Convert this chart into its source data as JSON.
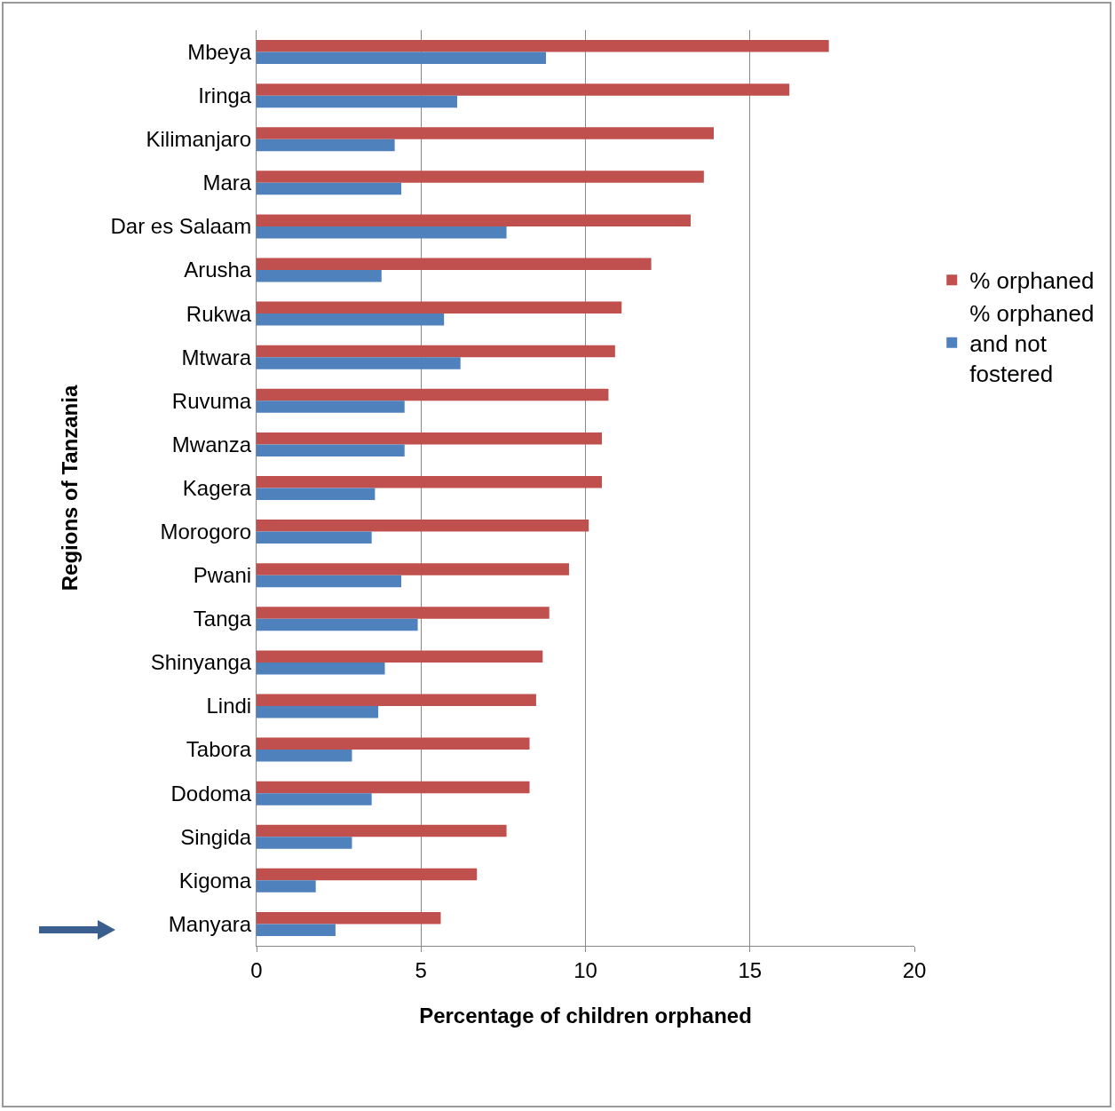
{
  "chart_data": {
    "type": "bar",
    "orientation": "horizontal",
    "xlabel": "Percentage of children orphaned",
    "ylabel": "Regions of Tanzania",
    "categories": [
      "Mbeya",
      "Iringa",
      "Kilimanjaro",
      "Mara",
      "Dar es Salaam",
      "Arusha",
      "Rukwa",
      "Mtwara",
      "Ruvuma",
      "Mwanza",
      "Kagera",
      "Morogoro",
      "Pwani",
      "Tanga",
      "Shinyanga",
      "Lindi",
      "Tabora",
      "Dodoma",
      "Singida",
      "Kigoma",
      "Manyara"
    ],
    "series": [
      {
        "name": "% orphaned",
        "color": "#c0504d",
        "values": [
          17.4,
          16.2,
          13.9,
          13.6,
          13.2,
          12.0,
          11.1,
          10.9,
          10.7,
          10.5,
          10.5,
          10.1,
          9.5,
          8.9,
          8.7,
          8.5,
          8.3,
          8.3,
          7.6,
          6.7,
          5.6
        ]
      },
      {
        "name": "% orphaned and not fostered",
        "color": "#4f81bd",
        "values": [
          8.8,
          6.1,
          4.2,
          4.4,
          7.6,
          3.8,
          5.7,
          6.2,
          4.5,
          4.5,
          3.6,
          3.5,
          4.4,
          4.9,
          3.9,
          3.7,
          2.9,
          3.5,
          2.9,
          1.8,
          2.4
        ]
      }
    ],
    "xlim": [
      0,
      20
    ],
    "xticks": [
      0,
      5,
      10,
      15,
      20
    ],
    "grid": "x",
    "legend": "right"
  }
}
